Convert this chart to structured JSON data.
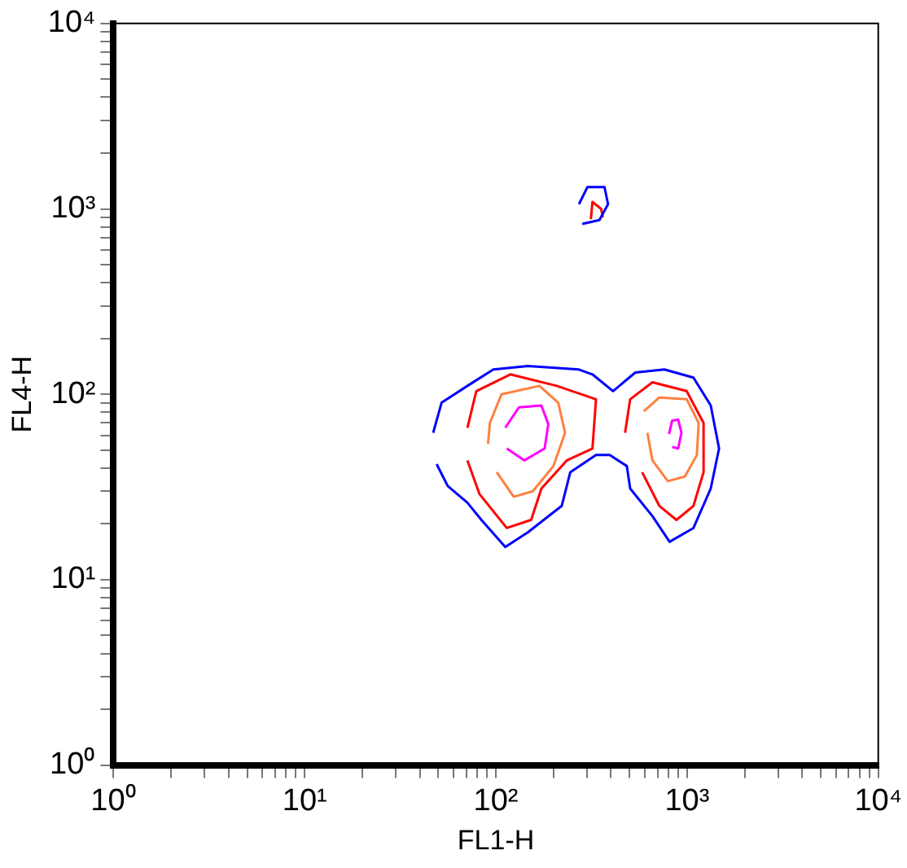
{
  "chart_data": {
    "type": "line",
    "xlabel": "FL1-H",
    "ylabel": "FL4-H",
    "log": "xy",
    "grid": false,
    "legend": false,
    "marker": "none",
    "line_style": "solid",
    "xlim": [
      1,
      10000
    ],
    "ylim": [
      1,
      10000
    ],
    "xticks": [
      {
        "value": 1,
        "label": "10⁰"
      },
      {
        "value": 2,
        "label": null
      },
      {
        "value": 3,
        "label": null
      },
      {
        "value": 4,
        "label": null
      },
      {
        "value": 5,
        "label": null
      },
      {
        "value": 6,
        "label": null
      },
      {
        "value": 7,
        "label": null
      },
      {
        "value": 8,
        "label": null
      },
      {
        "value": 9,
        "label": null
      },
      {
        "value": 10,
        "label": "10¹"
      },
      {
        "value": 20,
        "label": null
      },
      {
        "value": 30,
        "label": null
      },
      {
        "value": 40,
        "label": null
      },
      {
        "value": 50,
        "label": null
      },
      {
        "value": 60,
        "label": null
      },
      {
        "value": 70,
        "label": null
      },
      {
        "value": 80,
        "label": null
      },
      {
        "value": 90,
        "label": null
      },
      {
        "value": 100,
        "label": "10²"
      },
      {
        "value": 200,
        "label": null
      },
      {
        "value": 300,
        "label": null
      },
      {
        "value": 400,
        "label": null
      },
      {
        "value": 500,
        "label": null
      },
      {
        "value": 600,
        "label": null
      },
      {
        "value": 700,
        "label": null
      },
      {
        "value": 800,
        "label": null
      },
      {
        "value": 900,
        "label": null
      },
      {
        "value": 1000,
        "label": "10³"
      },
      {
        "value": 2000,
        "label": null
      },
      {
        "value": 3000,
        "label": null
      },
      {
        "value": 4000,
        "label": null
      },
      {
        "value": 5000,
        "label": null
      },
      {
        "value": 6000,
        "label": null
      },
      {
        "value": 7000,
        "label": null
      },
      {
        "value": 8000,
        "label": null
      },
      {
        "value": 9000,
        "label": null
      },
      {
        "value": 10000,
        "label": "10⁴"
      }
    ],
    "yticks": [
      {
        "value": 1,
        "label": "10⁰"
      },
      {
        "value": 2,
        "label": null
      },
      {
        "value": 3,
        "label": null
      },
      {
        "value": 4,
        "label": null
      },
      {
        "value": 5,
        "label": null
      },
      {
        "value": 6,
        "label": null
      },
      {
        "value": 7,
        "label": null
      },
      {
        "value": 8,
        "label": null
      },
      {
        "value": 9,
        "label": null
      },
      {
        "value": 10,
        "label": "10¹"
      },
      {
        "value": 20,
        "label": null
      },
      {
        "value": 30,
        "label": null
      },
      {
        "value": 40,
        "label": null
      },
      {
        "value": 50,
        "label": null
      },
      {
        "value": 60,
        "label": null
      },
      {
        "value": 70,
        "label": null
      },
      {
        "value": 80,
        "label": null
      },
      {
        "value": 90,
        "label": null
      },
      {
        "value": 100,
        "label": "10²"
      },
      {
        "value": 200,
        "label": null
      },
      {
        "value": 300,
        "label": null
      },
      {
        "value": 400,
        "label": null
      },
      {
        "value": 500,
        "label": null
      },
      {
        "value": 600,
        "label": null
      },
      {
        "value": 700,
        "label": null
      },
      {
        "value": 800,
        "label": null
      },
      {
        "value": 900,
        "label": null
      },
      {
        "value": 1000,
        "label": "10³"
      },
      {
        "value": 2000,
        "label": null
      },
      {
        "value": 3000,
        "label": null
      },
      {
        "value": 4000,
        "label": null
      },
      {
        "value": 5000,
        "label": null
      },
      {
        "value": 6000,
        "label": null
      },
      {
        "value": 7000,
        "label": null
      },
      {
        "value": 8000,
        "label": null
      },
      {
        "value": 9000,
        "label": null
      },
      {
        "value": 10000,
        "label": "10⁴"
      }
    ],
    "series": [
      {
        "color": "#0000ff",
        "x": [
          47,
          52,
          71,
          97,
          147,
          272,
          320,
          410,
          536,
          760,
          1080,
          1330,
          1470,
          1330,
          1080,
          810,
          659,
          504,
          484,
          394,
          334,
          245,
          221,
          147,
          112,
          84,
          71,
          56,
          49
        ],
        "values": [
          62,
          90,
          111,
          136,
          142,
          136,
          128,
          104,
          131,
          136,
          123,
          87,
          51,
          31,
          19,
          16,
          22,
          31,
          41,
          47,
          47,
          38,
          25,
          18,
          15,
          21,
          26,
          32,
          42
        ]
      },
      {
        "color": "#ff0000",
        "x": [
          71,
          79,
          119,
          208,
          334,
          320,
          235,
          173,
          153,
          114,
          82,
          71
        ],
        "values": [
          66,
          104,
          128,
          111,
          94,
          51,
          44,
          31,
          21,
          19,
          29,
          44
        ]
      },
      {
        "color": "#ff0000",
        "x": [
          474,
          504,
          659,
          995,
          1220,
          1220,
          1080,
          880,
          716,
          582
        ],
        "values": [
          62,
          94,
          116,
          104,
          70,
          38,
          25,
          21,
          25,
          38
        ]
      },
      {
        "color": "#ff8040",
        "x": [
          91,
          93,
          107,
          169,
          212,
          230,
          200,
          156,
          124,
          101
        ],
        "values": [
          54,
          70,
          100,
          111,
          90,
          62,
          41,
          30,
          28,
          38
        ]
      },
      {
        "color": "#ff8040",
        "x": [
          594,
          716,
          995,
          1150,
          1125,
          974,
          793,
          659,
          620
        ],
        "values": [
          81,
          96,
          94,
          70,
          47,
          36,
          34,
          44,
          62
        ]
      },
      {
        "color": "#ff00ff",
        "x": [
          112,
          132,
          173,
          188,
          180,
          141,
          114
        ],
        "values": [
          66,
          85,
          87,
          69,
          51,
          44,
          51
        ]
      },
      {
        "color": "#ff00ff",
        "x": [
          805,
          835,
          898,
          935,
          898,
          835
        ],
        "values": [
          61,
          72,
          73,
          62,
          51,
          52
        ]
      },
      {
        "color": "#0000ff",
        "x": [
          272,
          301,
          370,
          386,
          348,
          283
        ],
        "values": [
          1060,
          1310,
          1310,
          1060,
          870,
          830
        ]
      },
      {
        "color": "#ff0000",
        "x": [
          314,
          320,
          355,
          363
        ],
        "values": [
          880,
          1090,
          1000,
          900
        ]
      }
    ]
  }
}
